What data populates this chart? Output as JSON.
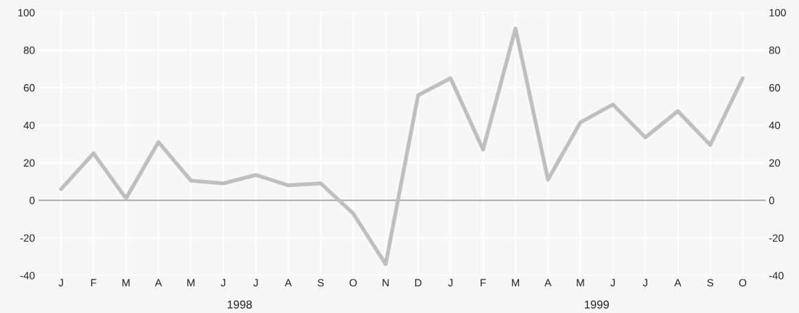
{
  "chart_data": {
    "type": "line",
    "categories": [
      "J",
      "F",
      "M",
      "A",
      "M",
      "J",
      "J",
      "A",
      "S",
      "O",
      "N",
      "D",
      "J",
      "F",
      "M",
      "A",
      "M",
      "J",
      "J",
      "A",
      "S",
      "O"
    ],
    "series": [
      {
        "color": "#bfbfbf",
        "values": [
          6,
          25,
          1,
          31,
          10.5,
          9,
          13.5,
          8,
          9,
          -7,
          -34,
          56,
          65,
          27,
          91.5,
          11,
          41.5,
          51,
          33.5,
          47.5,
          29.5,
          65
        ]
      }
    ],
    "ylim": [
      -40,
      100
    ],
    "yticks": [
      -40,
      -20,
      0,
      20,
      40,
      60,
      80,
      100
    ],
    "y2lim": [
      -40,
      100
    ],
    "y2ticks": [
      -40,
      -20,
      0,
      20,
      40,
      60,
      80,
      100
    ],
    "ref_lines": [
      {
        "axis": "y",
        "value": 0,
        "color": "#a6a6a6"
      }
    ],
    "annotations": [
      "1998",
      "1999"
    ],
    "grid": true,
    "marker": "none",
    "line_style": "solid"
  }
}
